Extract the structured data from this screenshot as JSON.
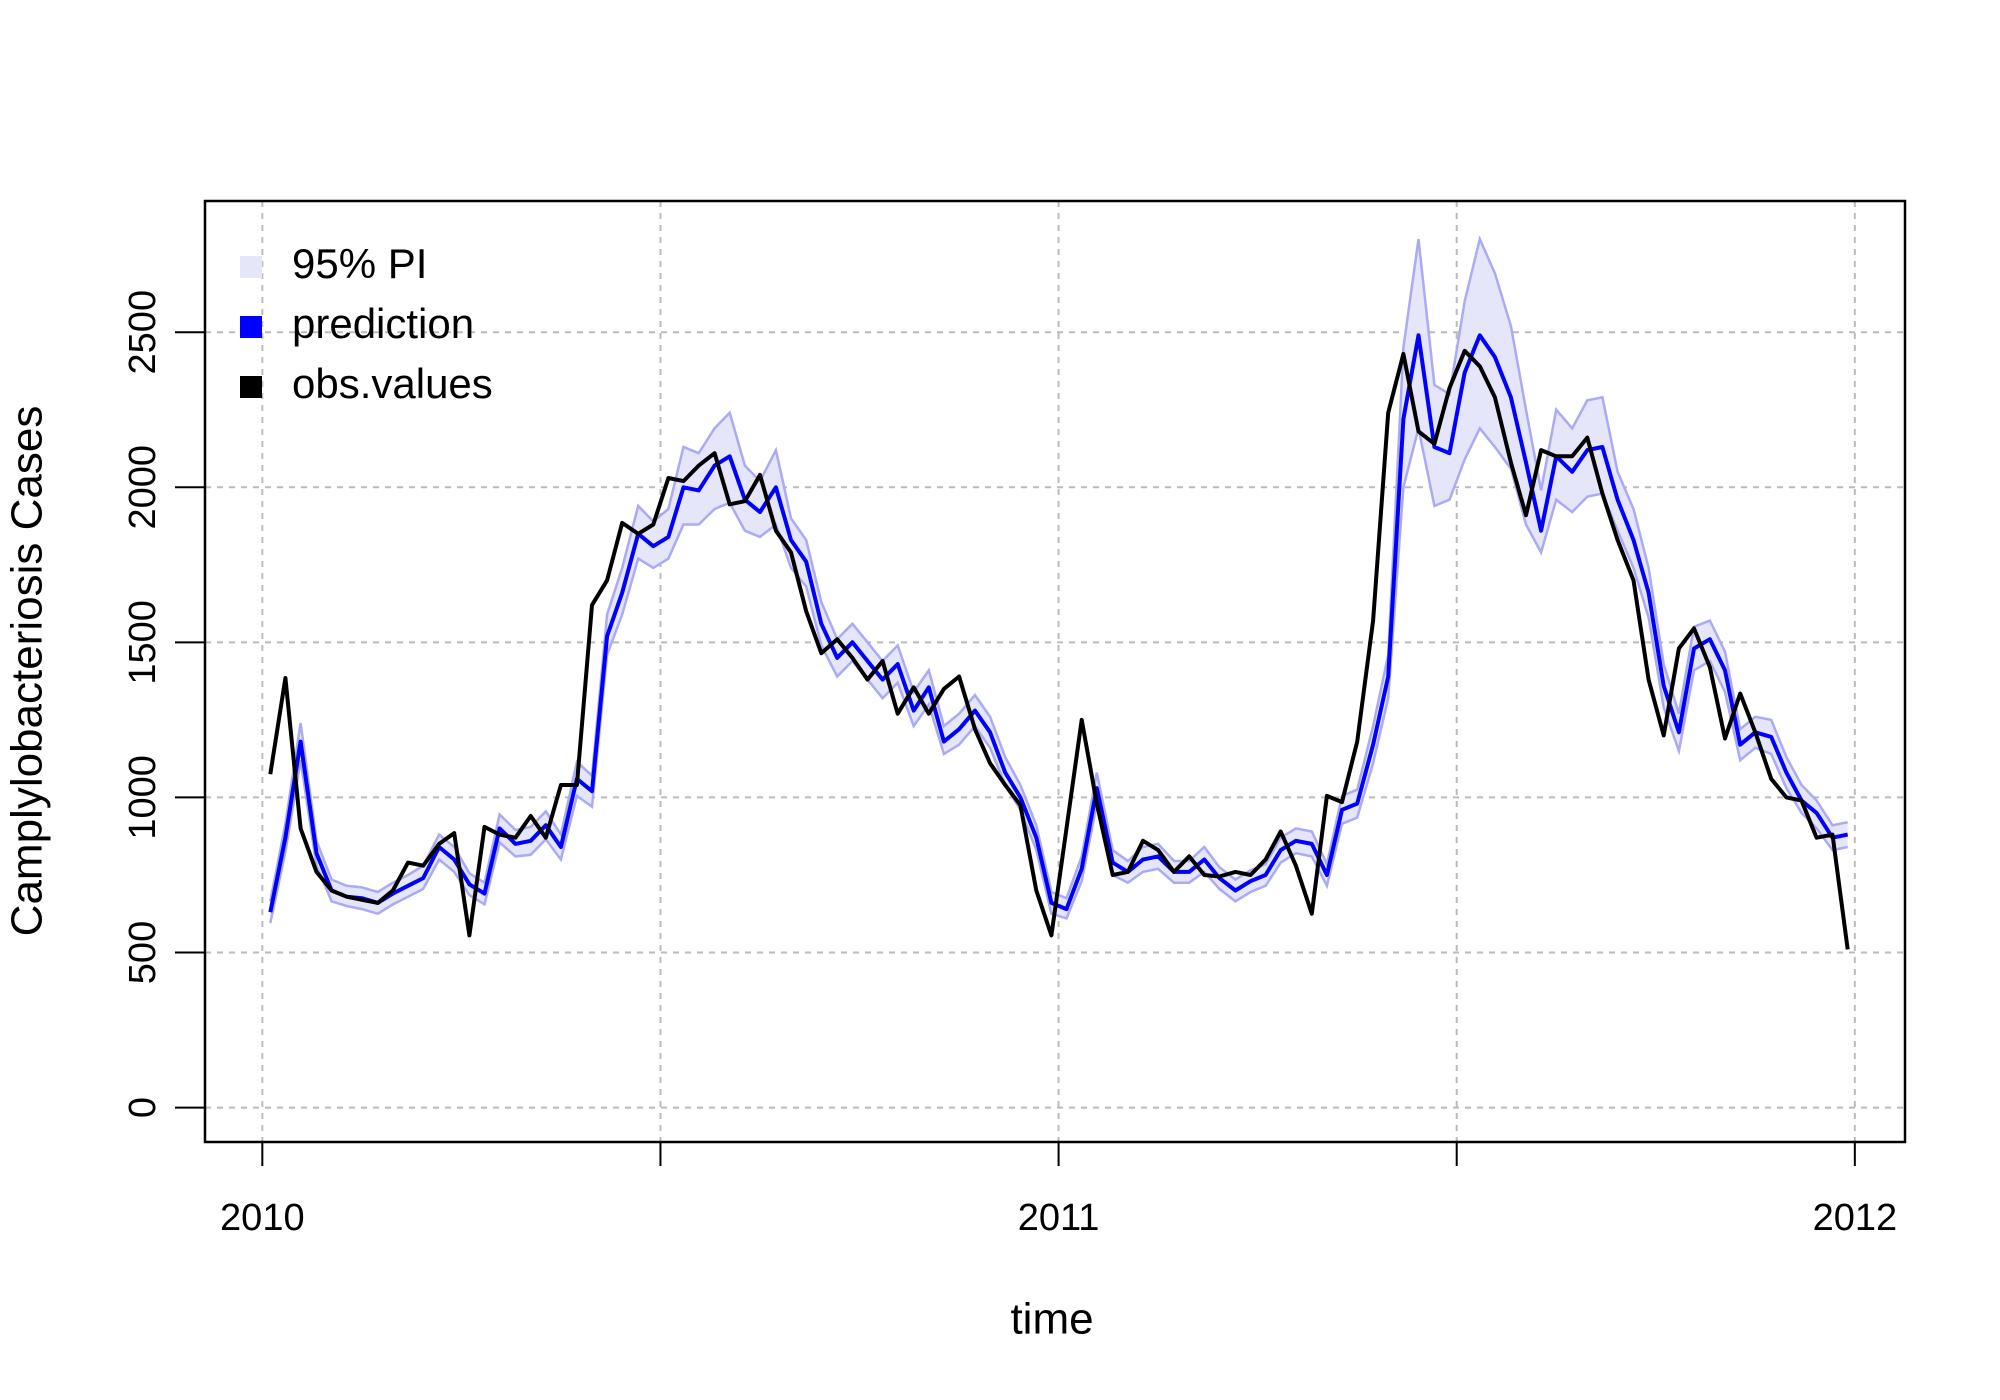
{
  "chart_data": {
    "type": "line",
    "xlabel": "time",
    "ylabel": "Camplylobacteriosis Cases",
    "x": [
      2010.01,
      2010.029,
      2010.048,
      2010.068,
      2010.087,
      2010.106,
      2010.125,
      2010.145,
      2010.164,
      2010.183,
      2010.202,
      2010.222,
      2010.241,
      2010.26,
      2010.279,
      2010.298,
      2010.318,
      2010.337,
      2010.356,
      2010.375,
      2010.395,
      2010.414,
      2010.433,
      2010.452,
      2010.472,
      2010.491,
      2010.51,
      2010.529,
      2010.548,
      2010.568,
      2010.587,
      2010.606,
      2010.625,
      2010.645,
      2010.664,
      2010.683,
      2010.702,
      2010.722,
      2010.741,
      2010.76,
      2010.779,
      2010.798,
      2010.818,
      2010.837,
      2010.856,
      2010.875,
      2010.895,
      2010.914,
      2010.933,
      2010.952,
      2010.972,
      2010.991,
      2011.01,
      2011.029,
      2011.048,
      2011.068,
      2011.087,
      2011.106,
      2011.125,
      2011.145,
      2011.164,
      2011.183,
      2011.202,
      2011.222,
      2011.241,
      2011.26,
      2011.279,
      2011.298,
      2011.318,
      2011.337,
      2011.356,
      2011.375,
      2011.395,
      2011.414,
      2011.433,
      2011.452,
      2011.472,
      2011.491,
      2011.51,
      2011.529,
      2011.548,
      2011.568,
      2011.587,
      2011.606,
      2011.625,
      2011.645,
      2011.664,
      2011.683,
      2011.702,
      2011.722,
      2011.741,
      2011.76,
      2011.779,
      2011.798,
      2011.818,
      2011.837,
      2011.856,
      2011.875,
      2011.895,
      2011.914,
      2011.933,
      2011.952,
      2011.972,
      2011.991
    ],
    "series": [
      {
        "name": "95% PI",
        "color": "#e6e6fa",
        "line_color": "#aaaaf5",
        "band": true,
        "lower": [
          595,
          825,
          1120,
          780,
          665,
          650,
          640,
          625,
          655,
          680,
          705,
          800,
          760,
          685,
          655,
          855,
          810,
          815,
          865,
          800,
          1005,
          970,
          1460,
          1590,
          1770,
          1740,
          1770,
          1880,
          1880,
          1930,
          1950,
          1860,
          1840,
          1880,
          1740,
          1680,
          1490,
          1390,
          1440,
          1380,
          1320,
          1370,
          1230,
          1300,
          1140,
          1170,
          1230,
          1160,
          1040,
          960,
          830,
          625,
          610,
          730,
          980,
          750,
          725,
          760,
          770,
          725,
          725,
          760,
          705,
          665,
          695,
          715,
          790,
          820,
          810,
          715,
          915,
          935,
          1110,
          1320,
          2000,
          2190,
          1940,
          1960,
          2090,
          2190,
          2130,
          2060,
          1880,
          1790,
          1960,
          1920,
          1970,
          1980,
          1860,
          1740,
          1580,
          1290,
          1150,
          1410,
          1440,
          1340,
          1120,
          1160,
          1140,
          1030,
          950,
          900,
          830,
          840
        ],
        "upper": [
          665,
          915,
          1240,
          860,
          735,
          715,
          710,
          695,
          725,
          750,
          780,
          880,
          840,
          755,
          725,
          945,
          895,
          905,
          955,
          880,
          1115,
          1070,
          1590,
          1740,
          1940,
          1890,
          1930,
          2130,
          2110,
          2190,
          2240,
          2070,
          2020,
          2120,
          1900,
          1830,
          1630,
          1510,
          1560,
          1500,
          1440,
          1490,
          1340,
          1410,
          1230,
          1270,
          1330,
          1260,
          1130,
          1040,
          910,
          695,
          675,
          810,
          1080,
          830,
          795,
          840,
          850,
          795,
          795,
          840,
          775,
          735,
          765,
          785,
          870,
          900,
          890,
          785,
          1005,
          1025,
          1230,
          1460,
          2450,
          2800,
          2330,
          2300,
          2600,
          2800,
          2690,
          2520,
          2250,
          1990,
          2250,
          2190,
          2280,
          2290,
          2050,
          1930,
          1740,
          1430,
          1270,
          1550,
          1570,
          1470,
          1220,
          1260,
          1250,
          1130,
          1040,
          990,
          910,
          920
        ]
      },
      {
        "name": "prediction",
        "color": "#0000ff",
        "values": [
          630,
          870,
          1180,
          820,
          700,
          680,
          675,
          660,
          690,
          715,
          740,
          840,
          800,
          720,
          690,
          900,
          850,
          860,
          910,
          840,
          1060,
          1020,
          1520,
          1660,
          1850,
          1810,
          1840,
          2000,
          1990,
          2070,
          2100,
          1960,
          1920,
          2000,
          1830,
          1760,
          1560,
          1450,
          1500,
          1440,
          1380,
          1430,
          1280,
          1355,
          1180,
          1220,
          1280,
          1210,
          1080,
          1000,
          870,
          660,
          640,
          770,
          1030,
          790,
          760,
          800,
          810,
          760,
          760,
          800,
          740,
          700,
          730,
          750,
          830,
          860,
          850,
          750,
          960,
          980,
          1170,
          1390,
          2220,
          2490,
          2130,
          2110,
          2370,
          2490,
          2420,
          2290,
          2080,
          1860,
          2100,
          2050,
          2120,
          2130,
          1960,
          1830,
          1660,
          1360,
          1210,
          1480,
          1510,
          1410,
          1170,
          1210,
          1195,
          1080,
          990,
          950,
          870,
          880
        ]
      },
      {
        "name": "obs.values",
        "color": "#000000",
        "values": [
          1075,
          1385,
          900,
          760,
          700,
          680,
          670,
          660,
          700,
          790,
          780,
          850,
          885,
          555,
          905,
          880,
          870,
          940,
          870,
          1040,
          1040,
          1620,
          1700,
          1885,
          1850,
          1880,
          2030,
          2020,
          2070,
          2110,
          1945,
          1955,
          2040,
          1860,
          1790,
          1600,
          1465,
          1510,
          1450,
          1380,
          1440,
          1270,
          1355,
          1270,
          1350,
          1390,
          1220,
          1110,
          1040,
          975,
          700,
          555,
          900,
          1250,
          980,
          750,
          760,
          860,
          830,
          760,
          810,
          750,
          745,
          760,
          750,
          800,
          890,
          780,
          625,
          1005,
          985,
          1180,
          1570,
          2240,
          2430,
          2180,
          2140,
          2320,
          2440,
          2390,
          2290,
          2080,
          1910,
          2120,
          2100,
          2100,
          2160,
          1980,
          1830,
          1700,
          1380,
          1200,
          1480,
          1545,
          1420,
          1190,
          1335,
          1210,
          1060,
          1000,
          990,
          870,
          880,
          510
        ]
      }
    ],
    "xlim": [
      2009.928,
      2012.063
    ],
    "xticks": [
      2010,
      {
        "value": 2010.5,
        "label": null
      },
      2011,
      {
        "value": 2011.5,
        "label": null
      },
      2012
    ],
    "ylim": [
      -111,
      2923
    ],
    "yticks": [
      0,
      500,
      1000,
      1500,
      2000,
      2500
    ],
    "grid": true,
    "legend": "top-left"
  }
}
